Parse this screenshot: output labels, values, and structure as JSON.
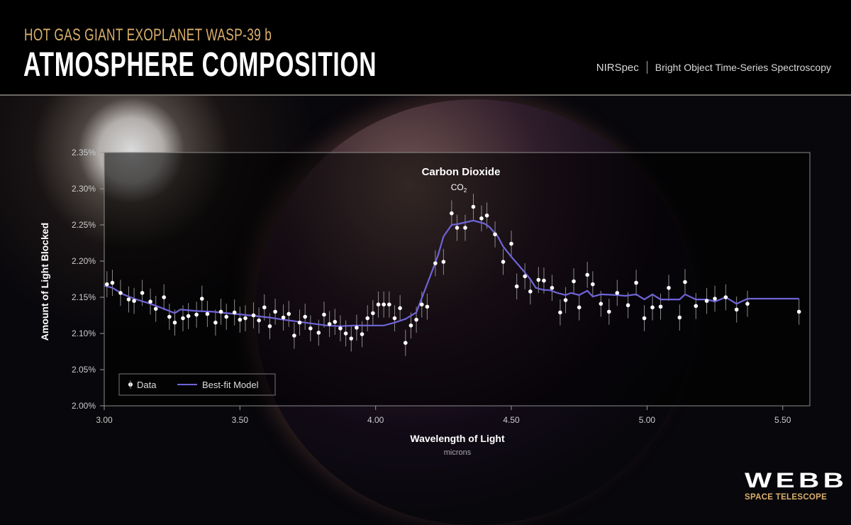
{
  "header": {
    "subtitle": "HOT GAS GIANT EXOPLANET WASP-39 b",
    "title": "ATMOSPHERE COMPOSITION",
    "instrument": "NIRSpec",
    "mode": "Bright Object Time-Series Spectroscopy"
  },
  "logo": {
    "name": "WEBB",
    "tagline": "SPACE TELESCOPE"
  },
  "colors": {
    "accent_gold": "#dcb06b",
    "model_line": "#6f64d8",
    "data_points": "#ffffff"
  },
  "chart_data": {
    "type": "scatter",
    "xlabel": "Wavelength of Light",
    "xunit": "microns",
    "ylabel": "Amount of Light Blocked",
    "xlim": [
      3.0,
      5.6
    ],
    "ylim": [
      2.0,
      2.35
    ],
    "xticks": [
      "3.00",
      "3.50",
      "4.00",
      "4.50",
      "5.00",
      "5.50"
    ],
    "xtick_values": [
      3.0,
      3.5,
      4.0,
      4.5,
      5.0,
      5.5
    ],
    "yticks": [
      "2.00%",
      "2.05%",
      "2.10%",
      "2.15%",
      "2.20%",
      "2.25%",
      "2.30%",
      "2.35%"
    ],
    "ytick_values": [
      2.0,
      2.05,
      2.1,
      2.15,
      2.2,
      2.25,
      2.3,
      2.35
    ],
    "grid": false,
    "legend_position": "bottom-left",
    "annotation": {
      "label": "Carbon Dioxide",
      "formula": "CO",
      "subscript": "2",
      "x": 4.3
    },
    "series": [
      {
        "name": "Data",
        "kind": "points",
        "yerr": 0.018,
        "x": [
          3.01,
          3.03,
          3.06,
          3.09,
          3.11,
          3.14,
          3.17,
          3.19,
          3.22,
          3.24,
          3.26,
          3.29,
          3.31,
          3.34,
          3.36,
          3.38,
          3.41,
          3.43,
          3.45,
          3.48,
          3.5,
          3.52,
          3.55,
          3.57,
          3.59,
          3.61,
          3.63,
          3.66,
          3.68,
          3.7,
          3.72,
          3.74,
          3.76,
          3.79,
          3.81,
          3.83,
          3.85,
          3.87,
          3.89,
          3.91,
          3.93,
          3.95,
          3.97,
          3.99,
          4.01,
          4.03,
          4.05,
          4.07,
          4.09,
          4.11,
          4.13,
          4.15,
          4.17,
          4.19,
          4.22,
          4.25,
          4.28,
          4.3,
          4.33,
          4.36,
          4.39,
          4.41,
          4.44,
          4.47,
          4.5,
          4.52,
          4.55,
          4.57,
          4.6,
          4.62,
          4.65,
          4.68,
          4.7,
          4.73,
          4.75,
          4.78,
          4.8,
          4.83,
          4.86,
          4.89,
          4.93,
          4.96,
          4.99,
          5.02,
          5.05,
          5.08,
          5.12,
          5.14,
          5.18,
          5.22,
          5.25,
          5.29,
          5.33,
          5.37,
          5.56
        ],
        "y": [
          2.168,
          2.17,
          2.156,
          2.147,
          2.145,
          2.156,
          2.144,
          2.134,
          2.15,
          2.123,
          2.115,
          2.121,
          2.124,
          2.126,
          2.148,
          2.127,
          2.115,
          2.13,
          2.123,
          2.129,
          2.119,
          2.121,
          2.125,
          2.118,
          2.136,
          2.11,
          2.13,
          2.122,
          2.127,
          2.097,
          2.115,
          2.123,
          2.107,
          2.101,
          2.126,
          2.113,
          2.116,
          2.107,
          2.1,
          2.093,
          2.108,
          2.099,
          2.121,
          2.128,
          2.14,
          2.14,
          2.14,
          2.121,
          2.135,
          2.087,
          2.111,
          2.119,
          2.14,
          2.137,
          2.197,
          2.199,
          2.266,
          2.246,
          2.246,
          2.275,
          2.259,
          2.263,
          2.237,
          2.199,
          2.224,
          2.165,
          2.179,
          2.158,
          2.174,
          2.173,
          2.163,
          2.129,
          2.146,
          2.172,
          2.136,
          2.181,
          2.168,
          2.141,
          2.13,
          2.156,
          2.139,
          2.17,
          2.121,
          2.136,
          2.137,
          2.163,
          2.122,
          2.171,
          2.138,
          2.145,
          2.148,
          2.15,
          2.133,
          2.141,
          2.13
        ]
      },
      {
        "name": "Best-fit Model",
        "kind": "line",
        "x": [
          3.0,
          3.03,
          3.07,
          3.11,
          3.17,
          3.22,
          3.26,
          3.28,
          3.34,
          3.4,
          3.45,
          3.51,
          3.56,
          3.61,
          3.66,
          3.74,
          3.82,
          3.87,
          3.92,
          3.98,
          4.03,
          4.07,
          4.11,
          4.15,
          4.17,
          4.2,
          4.23,
          4.25,
          4.28,
          4.3,
          4.36,
          4.4,
          4.42,
          4.45,
          4.47,
          4.5,
          4.53,
          4.55,
          4.57,
          4.59,
          4.62,
          4.64,
          4.67,
          4.7,
          4.72,
          4.75,
          4.78,
          4.8,
          4.83,
          4.89,
          4.92,
          4.96,
          4.99,
          5.02,
          5.05,
          5.08,
          5.12,
          5.14,
          5.18,
          5.22,
          5.25,
          5.29,
          5.33,
          5.37,
          5.56
        ],
        "y": [
          2.166,
          2.163,
          2.154,
          2.148,
          2.141,
          2.134,
          2.128,
          2.133,
          2.131,
          2.13,
          2.128,
          2.126,
          2.124,
          2.122,
          2.119,
          2.115,
          2.111,
          2.11,
          2.111,
          2.111,
          2.111,
          2.115,
          2.12,
          2.129,
          2.149,
          2.178,
          2.208,
          2.234,
          2.25,
          2.251,
          2.256,
          2.252,
          2.247,
          2.234,
          2.22,
          2.206,
          2.193,
          2.184,
          2.175,
          2.163,
          2.16,
          2.16,
          2.156,
          2.153,
          2.156,
          2.153,
          2.159,
          2.151,
          2.154,
          2.153,
          2.152,
          2.154,
          2.147,
          2.154,
          2.147,
          2.147,
          2.147,
          2.154,
          2.147,
          2.147,
          2.144,
          2.15,
          2.141,
          2.148,
          2.148
        ]
      }
    ]
  }
}
